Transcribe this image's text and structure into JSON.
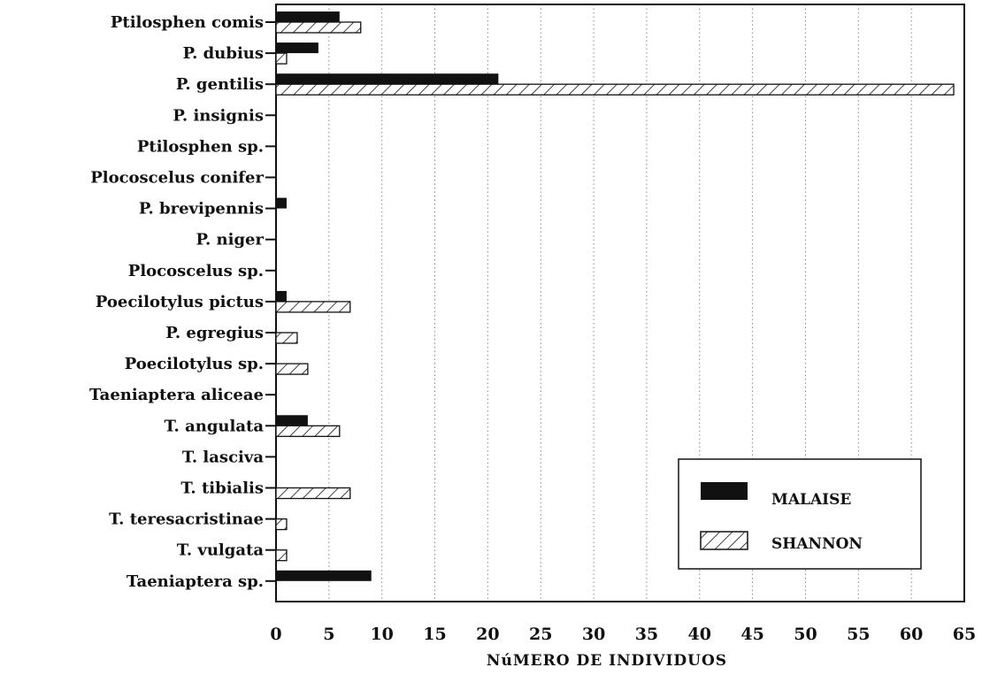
{
  "chart_data": {
    "type": "bar",
    "orientation": "horizontal",
    "title": "",
    "xlabel": "NúMERO DE INDIVIDUOS",
    "ylabel": "",
    "xlim": [
      0,
      65
    ],
    "xticks": [
      0,
      5,
      10,
      15,
      20,
      25,
      30,
      35,
      40,
      45,
      50,
      55,
      60,
      65
    ],
    "grid": "vertical dotted",
    "legend_position": "bottom-right",
    "categories": [
      "Ptilosphen comis",
      "P. dubius",
      "P. gentilis",
      "P. insignis",
      "Ptilosphen sp.",
      "Plocoscelus conifer",
      "P. brevipennis",
      "P. niger",
      "Plocoscelus sp.",
      "Poecilotylus pictus",
      "P. egregius",
      "Poecilotylus sp.",
      "Taeniaptera aliceae",
      "T. angulata",
      "T. lasciva",
      "T. tibialis",
      "T. teresacristinae",
      "T. vulgata",
      "Taeniaptera sp."
    ],
    "series": [
      {
        "name": "MALAISE",
        "fill": "solid",
        "color": "#111111",
        "values": [
          6,
          4,
          21,
          0,
          0,
          0,
          1,
          0,
          0,
          1,
          0,
          0,
          0,
          3,
          0,
          0,
          0,
          0,
          9
        ]
      },
      {
        "name": "SHANNON",
        "fill": "hatched",
        "color": "#111111",
        "values": [
          8,
          1,
          64,
          0,
          0,
          0,
          0,
          0,
          0,
          7,
          2,
          3,
          0,
          6,
          0,
          7,
          1,
          1,
          0
        ]
      }
    ]
  }
}
